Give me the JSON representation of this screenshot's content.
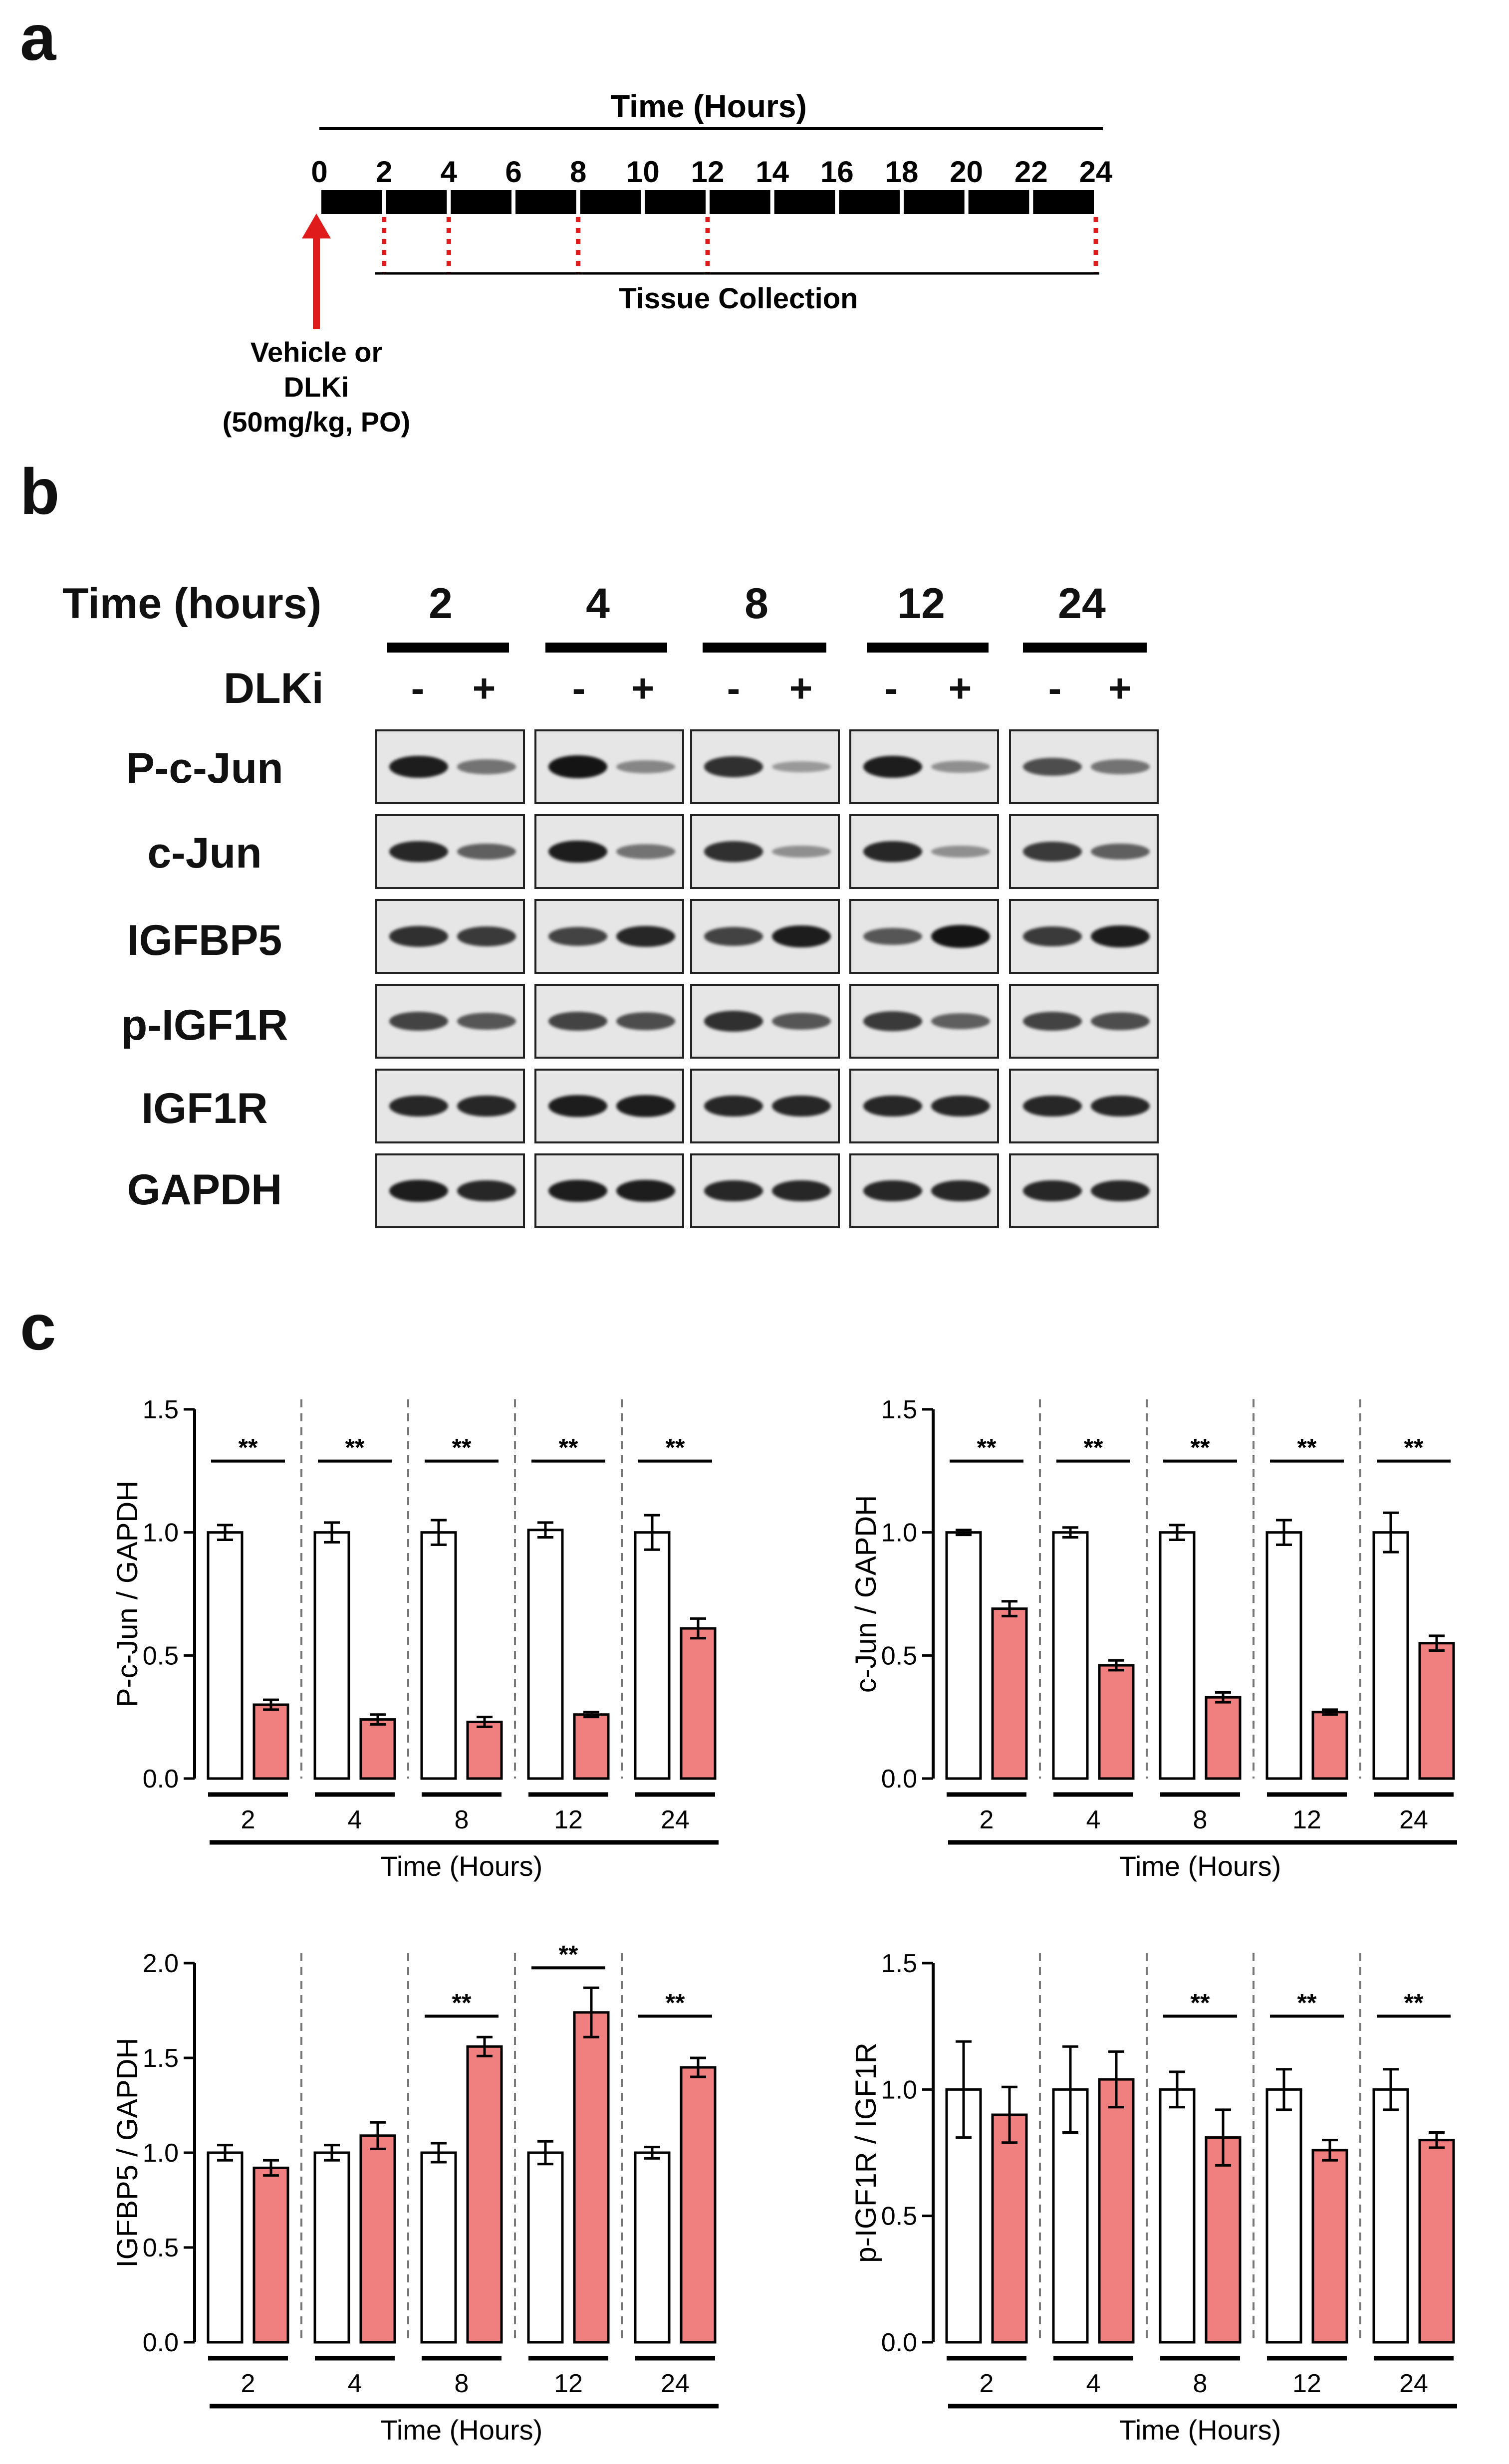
{
  "panels": [
    "a",
    "b",
    "c"
  ],
  "timeline": {
    "title": "Time (Hours)",
    "ticks": [
      "0",
      "2",
      "4",
      "6",
      "8",
      "10",
      "12",
      "14",
      "16",
      "18",
      "20",
      "22",
      "24"
    ],
    "collection_label": "Tissue Collection",
    "collection_times": [
      2,
      4,
      8,
      12,
      24
    ],
    "dose_lines": [
      "Vehicle or",
      "DLKi",
      "(50mg/kg, PO)"
    ]
  },
  "blot": {
    "time_header": "Time (hours)",
    "treatment_header": "DLKi",
    "timepoints": [
      "2",
      "4",
      "8",
      "12",
      "24"
    ],
    "signs": [
      "-",
      "+"
    ],
    "rows": [
      {
        "label": "P-c-Jun",
        "intensity": [
          [
            0.9,
            0.45
          ],
          [
            0.95,
            0.35
          ],
          [
            0.8,
            0.25
          ],
          [
            0.9,
            0.3
          ],
          [
            0.65,
            0.45
          ]
        ]
      },
      {
        "label": "c-Jun",
        "intensity": [
          [
            0.85,
            0.55
          ],
          [
            0.9,
            0.45
          ],
          [
            0.8,
            0.3
          ],
          [
            0.85,
            0.3
          ],
          [
            0.75,
            0.55
          ]
        ]
      },
      {
        "label": "IGFBP5",
        "intensity": [
          [
            0.8,
            0.75
          ],
          [
            0.7,
            0.85
          ],
          [
            0.7,
            0.9
          ],
          [
            0.6,
            0.95
          ],
          [
            0.75,
            0.9
          ]
        ]
      },
      {
        "label": "p-IGF1R",
        "intensity": [
          [
            0.7,
            0.6
          ],
          [
            0.7,
            0.65
          ],
          [
            0.8,
            0.6
          ],
          [
            0.75,
            0.55
          ],
          [
            0.7,
            0.65
          ]
        ]
      },
      {
        "label": "IGF1R",
        "intensity": [
          [
            0.85,
            0.85
          ],
          [
            0.9,
            0.9
          ],
          [
            0.85,
            0.85
          ],
          [
            0.85,
            0.85
          ],
          [
            0.85,
            0.85
          ]
        ]
      },
      {
        "label": "GAPDH",
        "intensity": [
          [
            0.9,
            0.85
          ],
          [
            0.9,
            0.9
          ],
          [
            0.85,
            0.85
          ],
          [
            0.85,
            0.85
          ],
          [
            0.85,
            0.85
          ]
        ]
      }
    ]
  },
  "colors": {
    "treated": "#f07f7f",
    "vehicle": "#ffffff",
    "line": "#000000",
    "divider": "#777777"
  },
  "chart_data": [
    {
      "type": "bar",
      "ylabel": "P-c-Jun / GAPDH",
      "xlabel": "Time (Hours)",
      "categories": [
        "2",
        "4",
        "8",
        "12",
        "24"
      ],
      "ylim": [
        0,
        1.5
      ],
      "yticks": [
        "0.0",
        "0.5",
        "1.0",
        "1.5"
      ],
      "series": [
        {
          "values": [
            1.0,
            1.0,
            1.0,
            1.01,
            1.0
          ],
          "errors": [
            0.03,
            0.04,
            0.05,
            0.03,
            0.07
          ]
        },
        {
          "values": [
            0.3,
            0.24,
            0.23,
            0.26,
            0.61
          ],
          "errors": [
            0.02,
            0.02,
            0.02,
            0.01,
            0.04
          ]
        }
      ],
      "significance": [
        "**",
        "**",
        "**",
        "**",
        "**"
      ]
    },
    {
      "type": "bar",
      "ylabel": "c-Jun / GAPDH",
      "xlabel": "Time (Hours)",
      "categories": [
        "2",
        "4",
        "8",
        "12",
        "24"
      ],
      "ylim": [
        0,
        1.5
      ],
      "yticks": [
        "0.0",
        "0.5",
        "1.0",
        "1.5"
      ],
      "series": [
        {
          "values": [
            1.0,
            1.0,
            1.0,
            1.0,
            1.0
          ],
          "errors": [
            0.01,
            0.02,
            0.03,
            0.05,
            0.08
          ]
        },
        {
          "values": [
            0.69,
            0.46,
            0.33,
            0.27,
            0.55
          ],
          "errors": [
            0.03,
            0.02,
            0.02,
            0.01,
            0.03
          ]
        }
      ],
      "significance": [
        "**",
        "**",
        "**",
        "**",
        "**"
      ]
    },
    {
      "type": "bar",
      "ylabel": "IGFBP5 / GAPDH",
      "xlabel": "Time (Hours)",
      "categories": [
        "2",
        "4",
        "8",
        "12",
        "24"
      ],
      "ylim": [
        0,
        2.0
      ],
      "yticks": [
        "0.0",
        "0.5",
        "1.0",
        "1.5",
        "2.0"
      ],
      "series": [
        {
          "values": [
            1.0,
            1.0,
            1.0,
            1.0,
            1.0
          ],
          "errors": [
            0.04,
            0.04,
            0.05,
            0.06,
            0.03
          ]
        },
        {
          "values": [
            0.92,
            1.09,
            1.56,
            1.74,
            1.45
          ],
          "errors": [
            0.04,
            0.07,
            0.05,
            0.13,
            0.05
          ]
        }
      ],
      "significance": [
        "",
        "",
        "**",
        "**",
        "**"
      ]
    },
    {
      "type": "bar",
      "ylabel": "p-IGF1R / IGF1R",
      "xlabel": "Time (Hours)",
      "categories": [
        "2",
        "4",
        "8",
        "12",
        "24"
      ],
      "ylim": [
        0,
        1.5
      ],
      "yticks": [
        "0.0",
        "0.5",
        "1.0",
        "1.5"
      ],
      "series": [
        {
          "values": [
            1.0,
            1.0,
            1.0,
            1.0,
            1.0
          ],
          "errors": [
            0.19,
            0.17,
            0.07,
            0.08,
            0.08
          ]
        },
        {
          "values": [
            0.9,
            1.04,
            0.81,
            0.76,
            0.8
          ],
          "errors": [
            0.11,
            0.11,
            0.11,
            0.04,
            0.03
          ]
        }
      ],
      "significance": [
        "",
        "",
        "**",
        "**",
        "**"
      ]
    }
  ]
}
